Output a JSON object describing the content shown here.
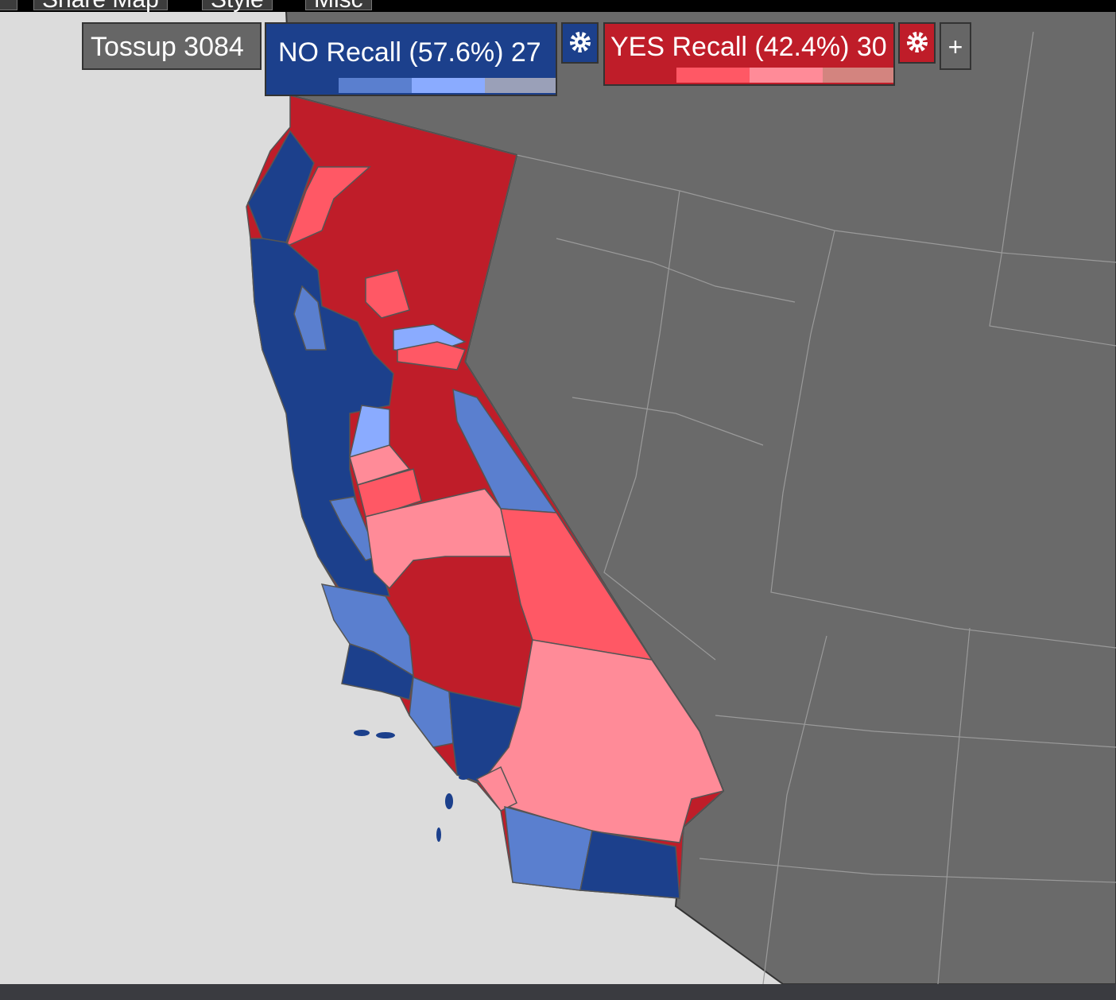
{
  "toolbar": {
    "buttons": [
      "Share Map",
      "Style",
      "Misc"
    ]
  },
  "legend": {
    "tossup": "Tossup 3084",
    "no": "NO Recall (57.6%) 27",
    "yes": "YES Recall (42.4%) 30",
    "add": "+"
  }
}
